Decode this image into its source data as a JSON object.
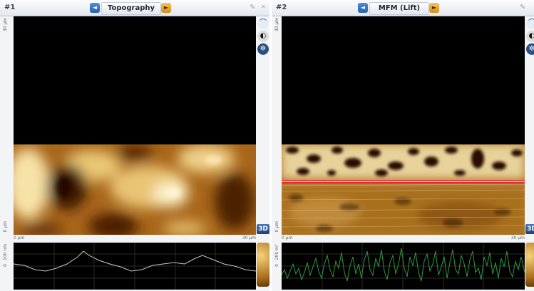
{
  "panels": [
    {
      "number": "#1",
      "title": "Topography",
      "y_top": "30 µm",
      "y_bottom": "0 µm",
      "x_left": "0 µm",
      "x_right": "30 µm",
      "profile_label_top": "100 nm",
      "profile_label_mid": "0",
      "three_d": "3D",
      "colors": {
        "dark": "#1a0700",
        "mid": "#9a5a12",
        "light": "#f7e7b4"
      }
    },
    {
      "number": "#2",
      "title": "MFM (Lift)",
      "y_top": "30 µm",
      "y_bottom": "0 µm",
      "x_left": "0 µm",
      "x_right": "30 µm",
      "profile_label_top": "200 m°",
      "profile_label_mid": "0",
      "three_d": "3D",
      "colors": {
        "dark": "#2a1100",
        "mid": "#a36a1e",
        "light": "#f2e6c0",
        "scanline": "#e0262c"
      }
    }
  ],
  "icons": {
    "nav_left": "◄",
    "nav_right": "►",
    "edit": "✎",
    "close": "✕",
    "curve": "⌒",
    "palette": "◐",
    "wheel": "✲"
  }
}
